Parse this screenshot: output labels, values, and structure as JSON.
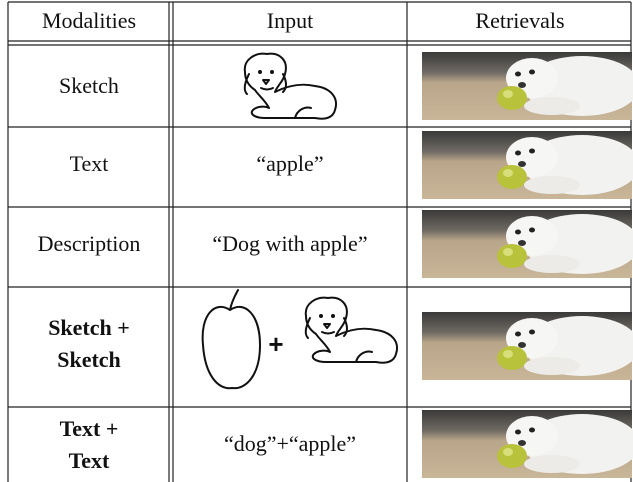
{
  "table": {
    "header": [
      "Modalities",
      "Input",
      "Retrievals"
    ],
    "rows": [
      {
        "modality": [
          "Sketch"
        ],
        "bold": false
      },
      {
        "modality": [
          "Text"
        ],
        "input": "“apple”",
        "bold": false
      },
      {
        "modality": [
          "Description"
        ],
        "input": "“Dog  with  apple”",
        "bold": false
      },
      {
        "modality": [
          "Sketch +",
          "Sketch"
        ],
        "input": "+",
        "bold": true
      },
      {
        "modality": [
          "Text +",
          "Text"
        ],
        "input": "“dog”+“apple”",
        "bold": true
      }
    ]
  }
}
